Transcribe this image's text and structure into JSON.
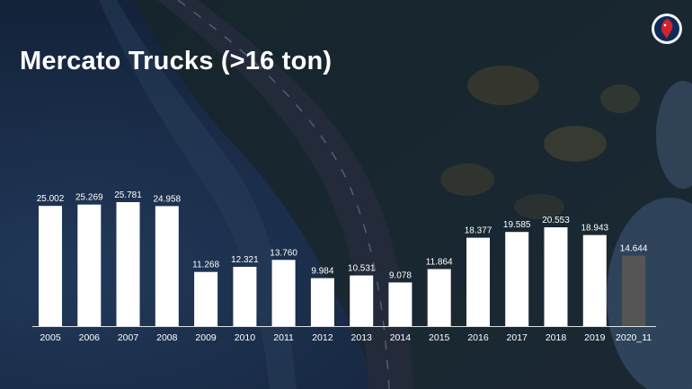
{
  "slide": {
    "title": "Mercato Trucks (>16 ton)",
    "logo_icon": "griffin-logo-icon"
  },
  "colors": {
    "bar": "#ffffff",
    "bar_highlight": "#555555",
    "label": "#ffffff",
    "tick_label": "#ffffff"
  },
  "chart_data": {
    "type": "bar",
    "title": "Mercato Trucks (>16 ton)",
    "xlabel": "",
    "ylabel": "",
    "categories": [
      "2005",
      "2006",
      "2007",
      "2008",
      "2009",
      "2010",
      "2011",
      "2012",
      "2013",
      "2014",
      "2015",
      "2016",
      "2017",
      "2018",
      "2019",
      "2020_11"
    ],
    "values": [
      25002,
      25269,
      25781,
      24958,
      11268,
      12321,
      13760,
      9984,
      10531,
      9078,
      11864,
      18377,
      19585,
      20553,
      18943,
      14644
    ],
    "data_labels": [
      "25.002",
      "25.269",
      "25.781",
      "24.958",
      "11.268",
      "12.321",
      "13.760",
      "9.984",
      "10.531",
      "9.078",
      "11.864",
      "18.377",
      "19.585",
      "20.553",
      "18.943",
      "14.644"
    ],
    "highlight_index": 15,
    "ylim": [
      0,
      25781
    ],
    "grid": false,
    "legend": "none"
  }
}
